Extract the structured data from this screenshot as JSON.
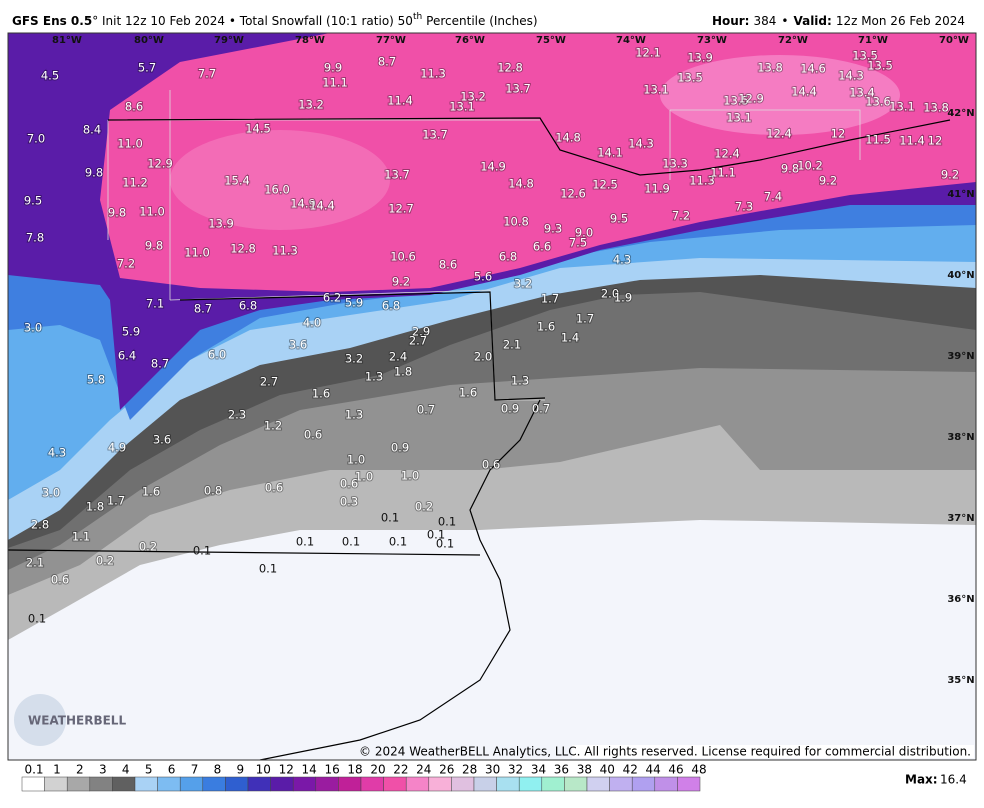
{
  "header": {
    "model": "GFS Ens 0.5",
    "title": "° Init 12z 10 Feb 2024 • Total Snowfall (10:1 ratio) 50",
    "superscript": "th",
    "title_end": "Percentile (Inches)",
    "hour_label": "Hour:",
    "hour": "384",
    "separator": "•",
    "valid_label": "Valid:",
    "valid": "12z Mon 26 Feb 2024"
  },
  "map": {
    "longitudes": [
      "81°W",
      "80°W",
      "79°W",
      "78°W",
      "77°W",
      "76°W",
      "75°W",
      "74°W",
      "73°W",
      "72°W",
      "71°W",
      "70°W"
    ],
    "latitudes": [
      "42°N",
      "41°N",
      "40°N",
      "39°N",
      "38°N",
      "37°N",
      "36°N",
      "35°N"
    ],
    "labels": [
      "4.5",
      "5.7",
      "7.7",
      "9.9",
      "8.7",
      "11.3",
      "12.8",
      "12.1",
      "13.9",
      "13.5",
      "13.5",
      "11.1",
      "13.7",
      "13.5",
      "13.8",
      "14.6",
      "14.3",
      "13.4",
      "8.6",
      "13.2",
      "11.4",
      "13.2",
      "13.1",
      "13.1",
      "13.5",
      "12.9",
      "14.4",
      "13.6",
      "13.1",
      "13.8",
      "8.4",
      "14.5",
      "13.7",
      "14.8",
      "14.3",
      "13.1",
      "12.4",
      "12",
      "7.0",
      "11.0",
      "14.1",
      "13.3",
      "12.4",
      "11.5",
      "11.4",
      "12",
      "9.8",
      "12.9",
      "15.4",
      "13.7",
      "14.9",
      "14.8",
      "11.3",
      "11.1",
      "9.8",
      "10.2",
      "9.2",
      "9.2",
      "11.2",
      "16.0",
      "12.6",
      "12.5",
      "11.9",
      "7.3",
      "7.4",
      "9.5",
      "14.9",
      "14.4",
      "12.7",
      "9.8",
      "11.0",
      "10.8",
      "9.5",
      "7.2",
      "13.9",
      "9.3",
      "9.0",
      "7.8",
      "9.8",
      "12.8",
      "11.3",
      "11.0",
      "6.6",
      "7.5",
      "7.2",
      "10.6",
      "8.6",
      "6.8",
      "5.6",
      "4.3",
      "9.2",
      "3.2",
      "2.0",
      "1.9",
      "1.7",
      "7.1",
      "8.7",
      "6.8",
      "6.2",
      "5.9",
      "6.8",
      "1.7",
      "3.0",
      "5.9",
      "4.0",
      "1.6",
      "1.4",
      "2.9",
      "2.7",
      "2.1",
      "3.6",
      "6.4",
      "6.0",
      "3.2",
      "2.4",
      "2.0",
      "8.7",
      "1.8",
      "5.8",
      "2.7",
      "1.3",
      "1.6",
      "1.6",
      "1.3",
      "2.3",
      "1.3",
      "0.7",
      "0.9",
      "0.7",
      "1.2",
      "0.6",
      "3.6",
      "4.9",
      "4.3",
      "0.9",
      "1.0",
      "0.6",
      "1.0",
      "1.0",
      "0.6",
      "3.0",
      "1.6",
      "0.8",
      "0.6",
      "0.3",
      "1.8",
      "1.7",
      "0.2",
      "2.8",
      "0.1",
      "0.1",
      "0.1",
      "1.1",
      "0.2",
      "0.1",
      "0.1",
      "0.1",
      "0.1",
      "0.1",
      "2.1",
      "0.2",
      "0.1",
      "0.6",
      "0.1"
    ],
    "logo": "WEATHERBELL",
    "copyright": "© 2024 WeatherBELL Analytics, LLC. All rights reserved. License required for commercial distribution."
  },
  "colorbar": {
    "labels": [
      "0.1",
      "1",
      "2",
      "3",
      "4",
      "5",
      "6",
      "7",
      "8",
      "9",
      "10",
      "12",
      "14",
      "16",
      "18",
      "20",
      "22",
      "24",
      "26",
      "28",
      "30",
      "32",
      "34",
      "36",
      "38",
      "40",
      "42",
      "44",
      "46",
      "48"
    ],
    "colors": [
      "#ffffff",
      "#d2d2d2",
      "#a8a8a8",
      "#828282",
      "#606060",
      "#a9d2f5",
      "#7dbcf2",
      "#55a0ea",
      "#3a7de0",
      "#2f5fd0",
      "#4030b8",
      "#5a1ca8",
      "#7a18a8",
      "#9a1ca0",
      "#c02098",
      "#e03ca8",
      "#f050a8",
      "#f584c8",
      "#f8b0d8",
      "#e0c0e0",
      "#c8d0e8",
      "#a8e0f0",
      "#90f0f0",
      "#a0f0d0",
      "#b8e8c8",
      "#d0d0f0",
      "#c0b0f0",
      "#b0a0f0",
      "#c090e8",
      "#d080e8"
    ],
    "max_label": "Max:",
    "max": "16.4"
  }
}
